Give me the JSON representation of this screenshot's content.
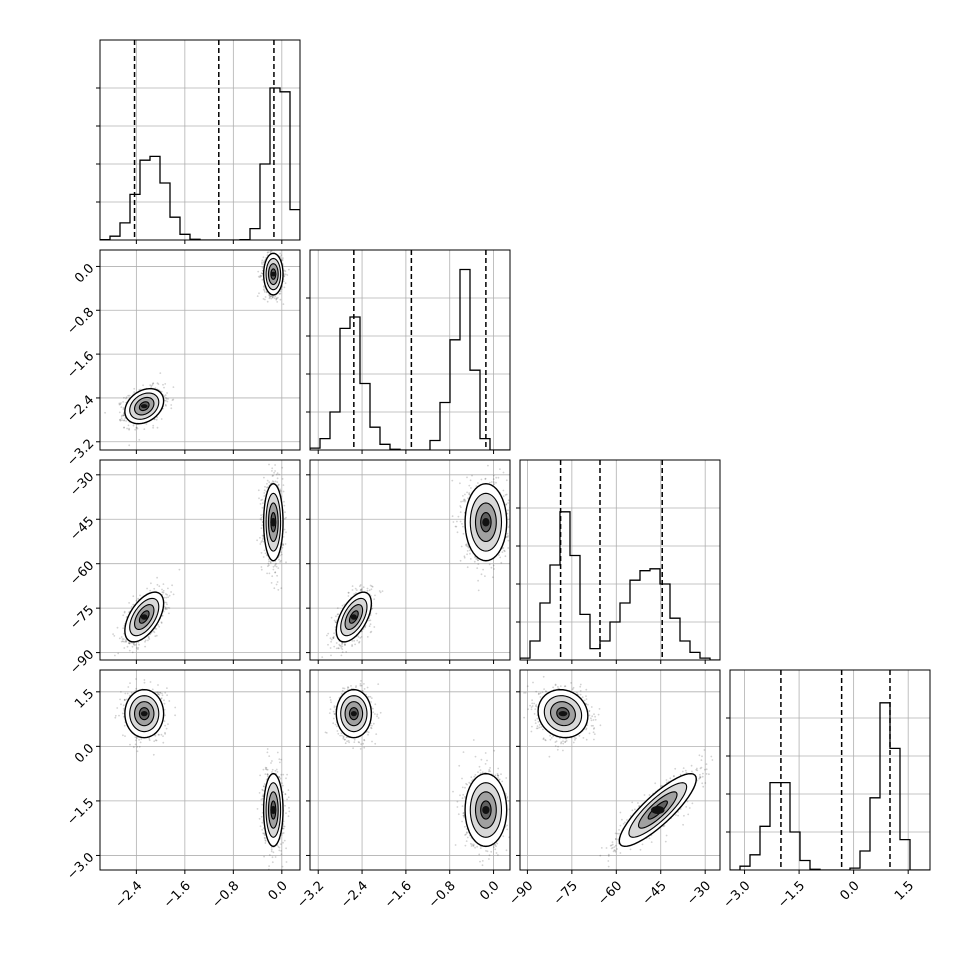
{
  "chart_data": {
    "type": "corner",
    "description_parameters": 4,
    "axes": [
      {
        "ticks": [
          -2.4,
          -1.6,
          -0.8,
          0.0
        ],
        "tick_labels": [
          "−2.4",
          "−1.6",
          "−0.8",
          "0.0"
        ],
        "range": [
          -3.0,
          0.3
        ],
        "hist_ylim": [
          0,
          0.5
        ]
      },
      {
        "ticks": [
          -3.2,
          -2.4,
          -1.6,
          -0.8,
          0.0
        ],
        "tick_labels": [
          "−3.2",
          "−2.4",
          "−1.6",
          "−0.8",
          "0.0"
        ],
        "range": [
          -3.35,
          0.3
        ]
      },
      {
        "ticks": [
          -90,
          -75,
          -60,
          -45,
          -30
        ],
        "tick_labels": [
          "−90",
          "−75",
          "−60",
          "−45",
          "−30"
        ],
        "range": [
          -92.5,
          -25
        ]
      },
      {
        "ticks": [
          -3.0,
          -1.5,
          0.0,
          1.5
        ],
        "tick_labels": [
          "−3.0",
          "−1.5",
          "0.0",
          "1.5"
        ],
        "range": [
          -3.4,
          2.1
        ]
      }
    ],
    "quantile_lines": [
      [
        -2.43,
        -1.04,
        -0.13
      ],
      [
        -2.55,
        -1.5,
        -0.14
      ],
      [
        -78.8,
        -65.5,
        -44.5
      ],
      [
        -2.0,
        -0.33,
        1.0
      ]
    ],
    "histograms": [
      {
        "edges_start": -3.0,
        "bin_width": 0.165,
        "counts": [
          0.002,
          0.02,
          0.09,
          0.24,
          0.42,
          0.44,
          0.3,
          0.12,
          0.03,
          0.004,
          0.0,
          0.0,
          0.0,
          0.0,
          0.002,
          0.06,
          0.4,
          0.8,
          0.78,
          0.16
        ]
      },
      {
        "edges_start": -3.35,
        "bin_width": 0.1825,
        "counts": [
          0.01,
          0.06,
          0.2,
          0.64,
          0.7,
          0.35,
          0.12,
          0.03,
          0.004,
          0.0,
          0.0,
          0.0,
          0.05,
          0.25,
          0.58,
          0.95,
          0.42,
          0.06,
          0.0,
          0.0
        ]
      },
      {
        "edges_start": -92.5,
        "bin_width": 3.375,
        "counts": [
          0.01,
          0.1,
          0.3,
          0.5,
          0.78,
          0.55,
          0.24,
          0.06,
          0.1,
          0.2,
          0.3,
          0.42,
          0.47,
          0.48,
          0.4,
          0.22,
          0.1,
          0.04,
          0.01,
          0.0
        ]
      },
      {
        "edges_start": -3.4,
        "bin_width": 0.275,
        "counts": [
          0.0,
          0.02,
          0.08,
          0.23,
          0.46,
          0.46,
          0.2,
          0.05,
          0.004,
          0.0,
          0.0,
          0.0,
          0.01,
          0.1,
          0.38,
          0.88,
          0.64,
          0.16,
          0.0,
          0.0
        ]
      }
    ],
    "mixture_components": [
      {
        "weight": 0.5,
        "mean": [
          -2.27,
          -2.55,
          -78.0,
          0.9
        ],
        "sd": [
          0.16,
          0.16,
          4.2,
          0.33
        ],
        "corr": {
          "0-1": 0.3,
          "0-2": 0.55,
          "1-2": 0.55,
          "2-3": -0.1
        }
      },
      {
        "weight": 0.5,
        "mean": [
          -0.14,
          -0.14,
          -46.0,
          -1.75
        ],
        "sd": [
          0.08,
          0.19,
          6.5,
          0.5
        ],
        "corr": {
          "2-3": 0.85
        }
      }
    ],
    "contour_levels": 4,
    "grid": true,
    "legend": "none"
  }
}
